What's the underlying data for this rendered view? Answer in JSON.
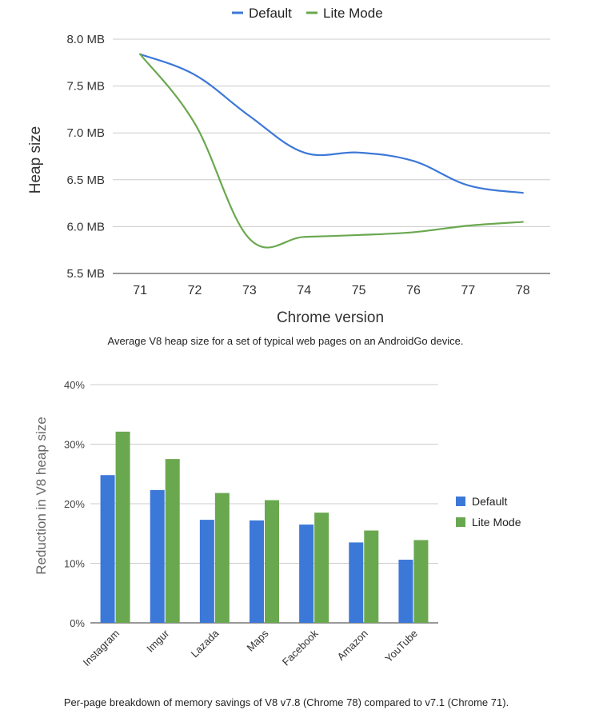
{
  "chart_data": [
    {
      "type": "line",
      "title": "",
      "xlabel": "Chrome version",
      "ylabel": "Heap size",
      "categories": [
        "71",
        "72",
        "73",
        "74",
        "75",
        "76",
        "77",
        "78"
      ],
      "y_ticks": [
        "5.5 MB",
        "6.0 MB",
        "6.5 MB",
        "7.0 MB",
        "7.5 MB",
        "8.0 MB"
      ],
      "y_tick_values": [
        5.5,
        6.0,
        6.5,
        7.0,
        7.5,
        8.0
      ],
      "ylim": [
        5.5,
        8.0
      ],
      "unit": "MB",
      "legend_position": "top-center",
      "grid": true,
      "series": [
        {
          "name": "Default",
          "color": "#3c78d8",
          "values": [
            7.84,
            7.62,
            7.18,
            6.79,
            6.79,
            6.7,
            6.44,
            6.36
          ]
        },
        {
          "name": "Lite Mode",
          "color": "#6aa84f",
          "values": [
            7.84,
            7.1,
            5.87,
            5.89,
            5.91,
            5.94,
            6.01,
            6.05
          ]
        }
      ]
    },
    {
      "type": "bar",
      "title": "",
      "xlabel": "",
      "ylabel": "Reduction in V8 heap size",
      "categories": [
        "Instagram",
        "Imgur",
        "Lazada",
        "Maps",
        "Facebook",
        "Amazon",
        "YouTube"
      ],
      "y_ticks": [
        "0%",
        "10%",
        "20%",
        "30%",
        "40%"
      ],
      "y_tick_values": [
        0,
        10,
        20,
        30,
        40
      ],
      "ylim": [
        0,
        40
      ],
      "unit": "%",
      "legend_position": "right",
      "grid": true,
      "series": [
        {
          "name": "Default",
          "color": "#3c78d8",
          "values": [
            24.8,
            22.3,
            17.3,
            17.2,
            16.5,
            13.5,
            10.6
          ]
        },
        {
          "name": "Lite Mode",
          "color": "#6aa84f",
          "values": [
            32.1,
            27.5,
            21.8,
            20.6,
            18.5,
            15.5,
            13.9
          ]
        }
      ]
    }
  ],
  "captions": {
    "line": "Average V8 heap size for a set of typical web pages on an AndroidGo device.",
    "bar": "Per-page breakdown of memory savings of V8 v7.8 (Chrome 78) compared to v7.1 (Chrome 71)."
  }
}
